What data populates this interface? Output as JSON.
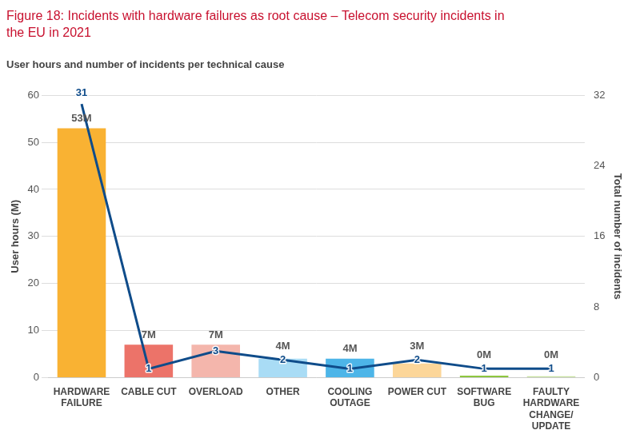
{
  "chart_data": {
    "type": "bar",
    "title": "Figure 18: Incidents with hardware failures as root cause – Telecom security incidents in the EU in 2021",
    "subtitle": "User hours and number of incidents per technical cause",
    "categories": [
      "HARDWARE FAILURE",
      "CABLE CUT",
      "OVERLOAD",
      "OTHER",
      "COOLING OUTAGE",
      "POWER CUT",
      "SOFTWARE BUG",
      "FAULTY HARDWARE CHANGE/UPDATE"
    ],
    "ylabel": "User hours (M)",
    "y2label": "Total number of incidents",
    "ylim": [
      0,
      60
    ],
    "yticks": [
      0,
      10,
      20,
      30,
      40,
      50,
      60
    ],
    "y2lim": [
      0,
      32
    ],
    "y2ticks": [
      0,
      8,
      16,
      24,
      32
    ],
    "grid": true,
    "series": [
      {
        "type": "bar",
        "colors": [
          "#f9b233",
          "#ec7369",
          "#f4b6ac",
          "#a9dcf5",
          "#4db5e8",
          "#fcd699",
          "#8dc63f",
          "#c8e29f"
        ],
        "values": [
          53,
          7,
          7,
          4,
          4,
          3,
          0.4,
          0.3
        ],
        "value_labels": [
          "53M",
          "7M",
          "7M",
          "4M",
          "4M",
          "3M",
          "0M",
          "0M"
        ],
        "data_labels": true
      },
      {
        "type": "line",
        "axis": "y2",
        "color": "#0f4c8a",
        "values": [
          31,
          1,
          3,
          2,
          1,
          2,
          1,
          1
        ],
        "data_labels": true
      }
    ]
  }
}
